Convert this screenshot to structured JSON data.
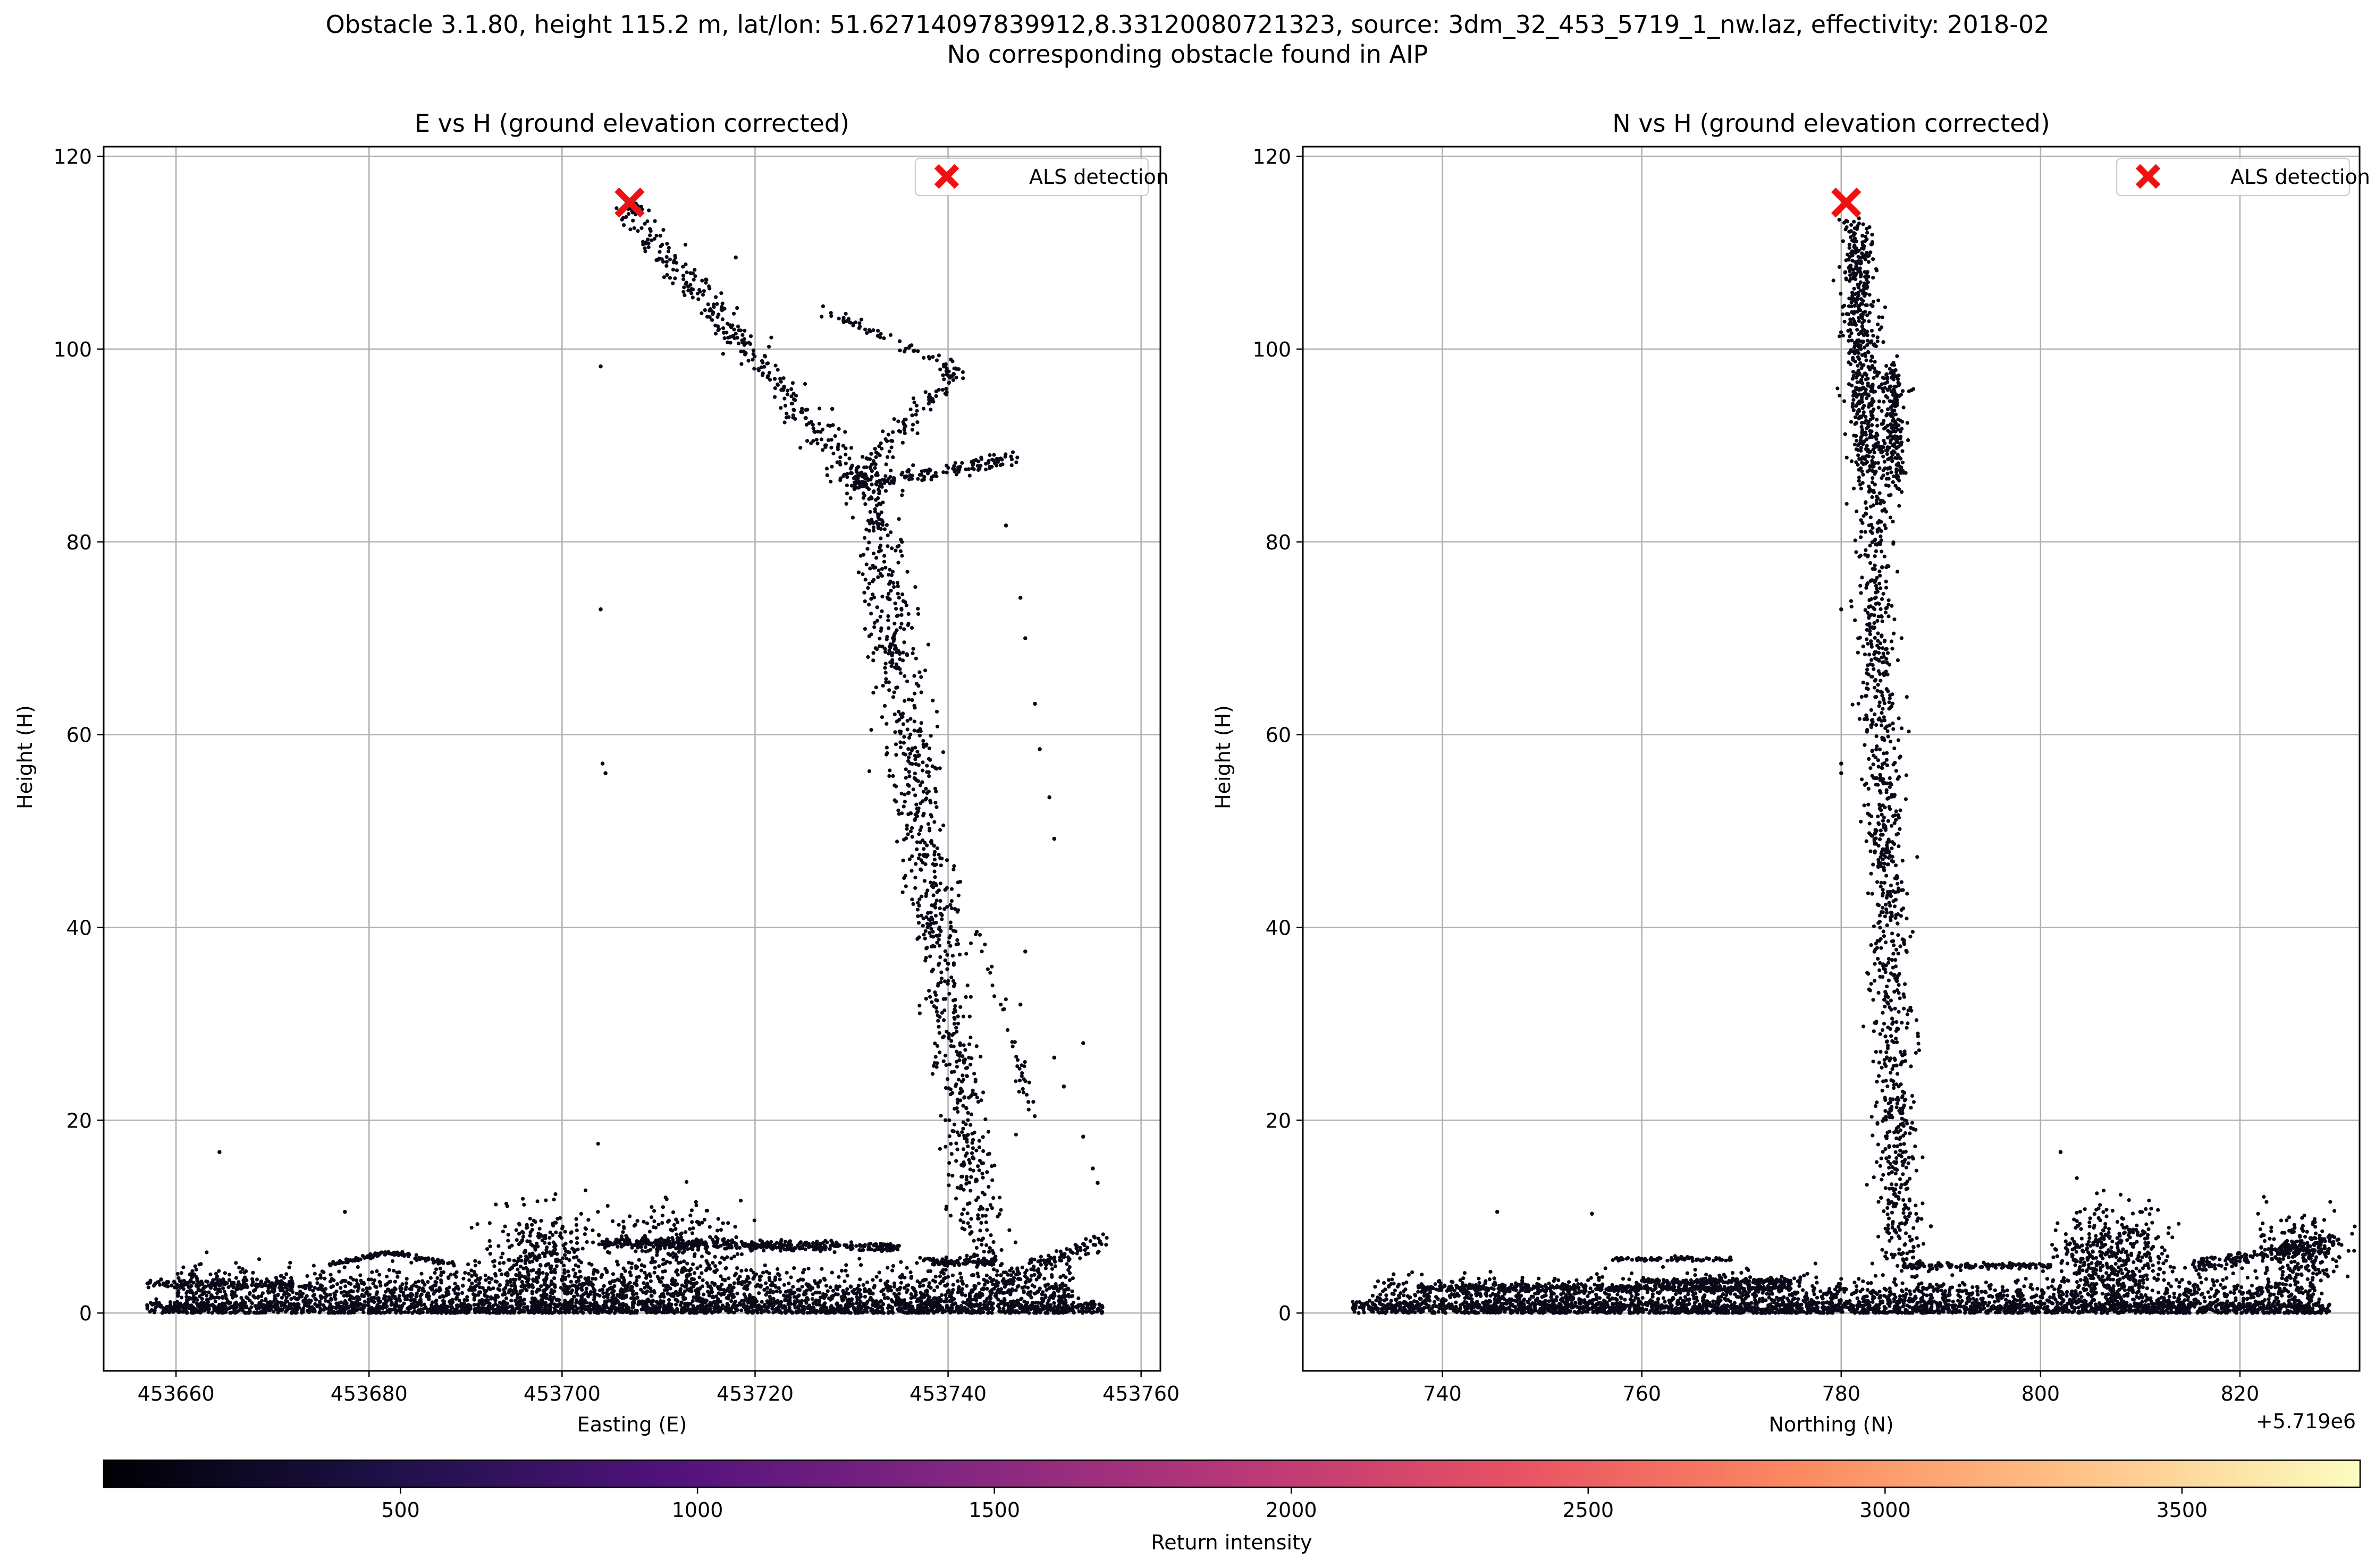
{
  "figure": {
    "title_line1": "Obstacle 3.1.80, height 115.2 m, lat/lon: 51.62714097839912,8.33120080721323, source: 3dm_32_453_5719_1_nw.laz, effectivity: 2018-02",
    "title_line2": "No corresponding obstacle found in AIP"
  },
  "colors": {
    "point": "#0b0716",
    "marker": "#ee1111",
    "grid": "#b0b0b0",
    "colormap": [
      "#000004",
      "#1d1147",
      "#51127c",
      "#822681",
      "#b73779",
      "#e75263",
      "#fc8961",
      "#fec287",
      "#fcfdbf"
    ]
  },
  "chart_data": [
    {
      "type": "scatter",
      "title": "E vs H (ground elevation corrected)",
      "xlabel": "Easting (E)",
      "ylabel": "Height (H)",
      "xlim": [
        453652.5,
        453762
      ],
      "ylim": [
        -6,
        121
      ],
      "xticks": [
        453660,
        453680,
        453700,
        453720,
        453740,
        453760
      ],
      "yticks": [
        0,
        20,
        40,
        60,
        80,
        100,
        120
      ],
      "xtick_labels": [
        "453660",
        "453680",
        "453700",
        "453720",
        "453740",
        "453760"
      ],
      "ytick_labels": [
        "0",
        "20",
        "40",
        "60",
        "80",
        "100",
        "120"
      ],
      "offset_text": "",
      "grid": true,
      "legend": {
        "label": "ALS detection",
        "position": "top-right"
      },
      "detection": {
        "x": 453707,
        "y": 115.2
      },
      "point_cloud": [
        {
          "segment": "arm-to-detection",
          "from": [
            453706.5,
            115
          ],
          "to": [
            453731,
            86
          ],
          "count": 320,
          "spread": [
            0.7,
            0.9
          ]
        },
        {
          "segment": "arm-upper-right",
          "from": [
            453727,
            104
          ],
          "to": [
            453741,
            98
          ],
          "count": 55,
          "spread": [
            0.25,
            0.3
          ]
        },
        {
          "segment": "arm-to-right-tip",
          "from": [
            453741,
            98
          ],
          "to": [
            453730,
            86
          ],
          "count": 120,
          "spread": [
            0.5,
            0.6
          ]
        },
        {
          "segment": "arm-horizontal",
          "from": [
            453730,
            86
          ],
          "to": [
            453747,
            88.5
          ],
          "count": 150,
          "spread": [
            0.4,
            0.5
          ]
        },
        {
          "segment": "tower",
          "from": [
            453732,
            86
          ],
          "to": [
            453744,
            5
          ],
          "count": 900,
          "spread": [
            1.3,
            0.6
          ]
        },
        {
          "segment": "blade-lower",
          "from": [
            453743,
            40
          ],
          "to": [
            453749,
            20
          ],
          "count": 40,
          "spread": [
            0.3,
            0.5
          ]
        },
        {
          "segment": "ground-base",
          "from": [
            453657,
            0.5
          ],
          "to": [
            453756,
            0.5
          ],
          "count": 1500,
          "spread": [
            0.0,
            0.4
          ]
        },
        {
          "segment": "ground-clutter",
          "from": [
            453660,
            2
          ],
          "to": [
            453753,
            2
          ],
          "count": 2200,
          "spread": [
            0.0,
            1.3
          ]
        },
        {
          "segment": "roof-left",
          "from": [
            453657,
            3
          ],
          "to": [
            453672,
            3
          ],
          "count": 120,
          "spread": [
            0.0,
            0.2
          ]
        },
        {
          "segment": "roof-gable-a",
          "from": [
            453676,
            5
          ],
          "to": [
            453682,
            6.3
          ],
          "count": 60,
          "spread": [
            0.1,
            0.12
          ]
        },
        {
          "segment": "roof-gable-b",
          "from": [
            453682,
            6.3
          ],
          "to": [
            453689,
            5
          ],
          "count": 60,
          "spread": [
            0.1,
            0.12
          ]
        },
        {
          "segment": "roof-long",
          "from": [
            453704,
            7.3
          ],
          "to": [
            453735,
            6.8
          ],
          "count": 420,
          "spread": [
            0.0,
            0.25
          ]
        },
        {
          "segment": "tree-a",
          "from": [
            453698,
            6
          ],
          "to": [
            453698,
            6
          ],
          "count": 300,
          "spread": [
            3.0,
            2.7
          ]
        },
        {
          "segment": "tree-b",
          "from": [
            453712,
            6
          ],
          "to": [
            453712,
            6
          ],
          "count": 280,
          "spread": [
            3.2,
            2.6
          ]
        },
        {
          "segment": "roof-right",
          "from": [
            453737,
            5.3
          ],
          "to": [
            453745,
            5.3
          ],
          "count": 90,
          "spread": [
            0.0,
            0.2
          ]
        },
        {
          "segment": "right-slope",
          "from": [
            453745,
            3
          ],
          "to": [
            453756,
            7.5
          ],
          "count": 120,
          "spread": [
            0.4,
            0.5
          ]
        }
      ],
      "outliers": [
        [
          453664.5,
          16.7
        ],
        [
          453677.5,
          10.5
        ],
        [
          453704,
          98.2
        ],
        [
          453704,
          73
        ],
        [
          453704.2,
          57
        ],
        [
          453704.5,
          56
        ],
        [
          453746,
          81.7
        ],
        [
          453747.5,
          74.2
        ],
        [
          453748,
          70
        ],
        [
          453749,
          63.2
        ],
        [
          453749.5,
          58.5
        ],
        [
          453750.5,
          53.5
        ],
        [
          453751,
          49.2
        ],
        [
          453751,
          26.5
        ],
        [
          453752,
          23.5
        ],
        [
          453754,
          28
        ],
        [
          453754,
          18.3
        ],
        [
          453755,
          15
        ],
        [
          453755.5,
          13.5
        ],
        [
          453721,
          99.3
        ],
        [
          453718,
          109.5
        ],
        [
          453724,
          93.7
        ],
        [
          453728,
          93.8
        ],
        [
          453747.5,
          32
        ],
        [
          453748,
          37.5
        ]
      ]
    },
    {
      "type": "scatter",
      "title": "N vs H (ground elevation corrected)",
      "xlabel": "Northing (N)",
      "ylabel": "Height (H)",
      "xlim": [
        5719726,
        5719832
      ],
      "ylim": [
        -6,
        121
      ],
      "xticks": [
        5719740,
        5719760,
        5719780,
        5719800,
        5719820
      ],
      "yticks": [
        0,
        20,
        40,
        60,
        80,
        100,
        120
      ],
      "xtick_labels": [
        "740",
        "760",
        "780",
        "800",
        "820"
      ],
      "ytick_labels": [
        "0",
        "20",
        "40",
        "60",
        "80",
        "100",
        "120"
      ],
      "offset_text": "+5.719e6",
      "grid": true,
      "legend": {
        "label": "ALS detection",
        "position": "top-right"
      },
      "detection": {
        "x": 5719780.5,
        "y": 115.2
      },
      "point_cloud": [
        {
          "segment": "tower-top",
          "from": [
            5719781.5,
            113
          ],
          "to": [
            5719782.5,
            88
          ],
          "count": 520,
          "spread": [
            0.9,
            0.8
          ]
        },
        {
          "segment": "blade-column",
          "from": [
            5719785,
            98
          ],
          "to": [
            5719785.5,
            86
          ],
          "count": 200,
          "spread": [
            0.6,
            0.8
          ]
        },
        {
          "segment": "tower-body",
          "from": [
            5719783,
            88
          ],
          "to": [
            5719786,
            5
          ],
          "count": 1000,
          "spread": [
            1.0,
            0.5
          ]
        },
        {
          "segment": "ground-base",
          "from": [
            5719731,
            0.5
          ],
          "to": [
            5719829,
            0.5
          ],
          "count": 1500,
          "spread": [
            0.0,
            0.4
          ]
        },
        {
          "segment": "ground-clutter",
          "from": [
            5719733,
            1.5
          ],
          "to": [
            5719828,
            1.5
          ],
          "count": 1800,
          "spread": [
            0.0,
            1.1
          ]
        },
        {
          "segment": "roof-strip-a",
          "from": [
            5719738,
            2.6
          ],
          "to": [
            5719775,
            2.6
          ],
          "count": 420,
          "spread": [
            0.0,
            0.2
          ]
        },
        {
          "segment": "roof-strip-b",
          "from": [
            5719757,
            5.6
          ],
          "to": [
            5719769,
            5.6
          ],
          "count": 80,
          "spread": [
            0.0,
            0.1
          ]
        },
        {
          "segment": "roof-strip-c",
          "from": [
            5719760,
            3.3
          ],
          "to": [
            5719776,
            3.3
          ],
          "count": 160,
          "spread": [
            0.0,
            0.15
          ]
        },
        {
          "segment": "roof-strip-d",
          "from": [
            5719786,
            4.9
          ],
          "to": [
            5719801,
            4.9
          ],
          "count": 140,
          "spread": [
            0.0,
            0.15
          ]
        },
        {
          "segment": "tree-a",
          "from": [
            5719807,
            5.5
          ],
          "to": [
            5719807,
            5.5
          ],
          "count": 450,
          "spread": [
            2.7,
            2.8
          ]
        },
        {
          "segment": "roof-slope-right",
          "from": [
            5719815,
            4.8
          ],
          "to": [
            5719830,
            7.5
          ],
          "count": 200,
          "spread": [
            0.3,
            0.4
          ]
        },
        {
          "segment": "tree-b",
          "from": [
            5719826,
            6
          ],
          "to": [
            5719826,
            6
          ],
          "count": 240,
          "spread": [
            2.2,
            2.2
          ]
        }
      ],
      "outliers": [
        [
          5719745.5,
          10.5
        ],
        [
          5719755,
          10.3
        ],
        [
          5719780,
          73
        ],
        [
          5719780,
          57
        ],
        [
          5719780,
          56
        ],
        [
          5719802,
          16.7
        ],
        [
          5719789,
          9
        ],
        [
          5719810,
          10.5
        ]
      ]
    }
  ],
  "colorbar": {
    "label": "Return intensity",
    "range": [
      0,
      3800
    ],
    "ticks": [
      500,
      1000,
      1500,
      2000,
      2500,
      3000,
      3500
    ],
    "tick_labels": [
      "500",
      "1000",
      "1500",
      "2000",
      "2500",
      "3000",
      "3500"
    ],
    "colormap": "magma"
  }
}
